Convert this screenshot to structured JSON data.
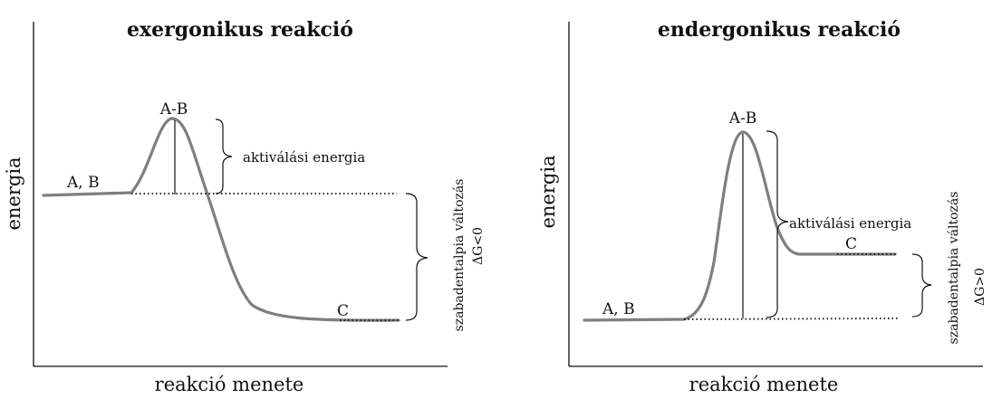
{
  "panels": [
    {
      "title": "exergonikus reakció",
      "y_axis_label": "energia",
      "x_axis_label": "reakció menete",
      "reactant_label": "A, B",
      "transition_label": "A-B",
      "product_label": "C",
      "activation_label": "aktiválási energia",
      "free_energy_label": "szabadentalpia változás",
      "delta_g_label": "ΔG<0"
    },
    {
      "title": "endergonikus reakció",
      "y_axis_label": "energia",
      "x_axis_label": "reakció menete",
      "reactant_label": "A, B",
      "transition_label": "A-B",
      "product_label": "C",
      "activation_label": "aktiválási energia",
      "free_energy_label": "szabadentalpia változás",
      "delta_g_label": "ΔG>0"
    }
  ],
  "colors": {
    "curve": "#7f7f7f",
    "axis": "#111111",
    "text": "#111111"
  }
}
